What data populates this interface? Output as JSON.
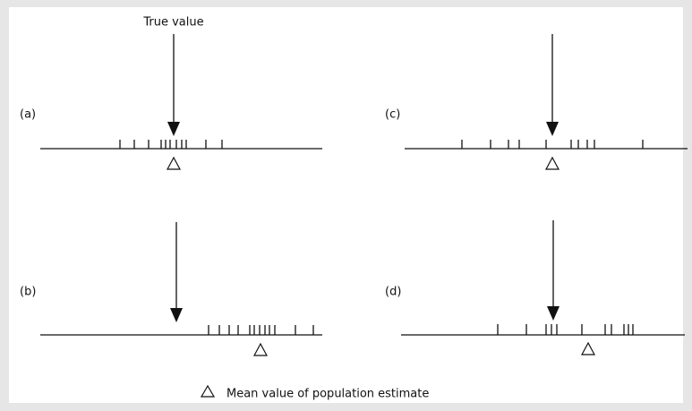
{
  "diagram": {
    "true_value_label": "True value",
    "panels": [
      {
        "label": "(a)"
      },
      {
        "label": "(b)"
      },
      {
        "label": "(c)"
      },
      {
        "label": "(d)"
      }
    ],
    "legend": {
      "label": "Mean value of population estimate"
    }
  }
}
